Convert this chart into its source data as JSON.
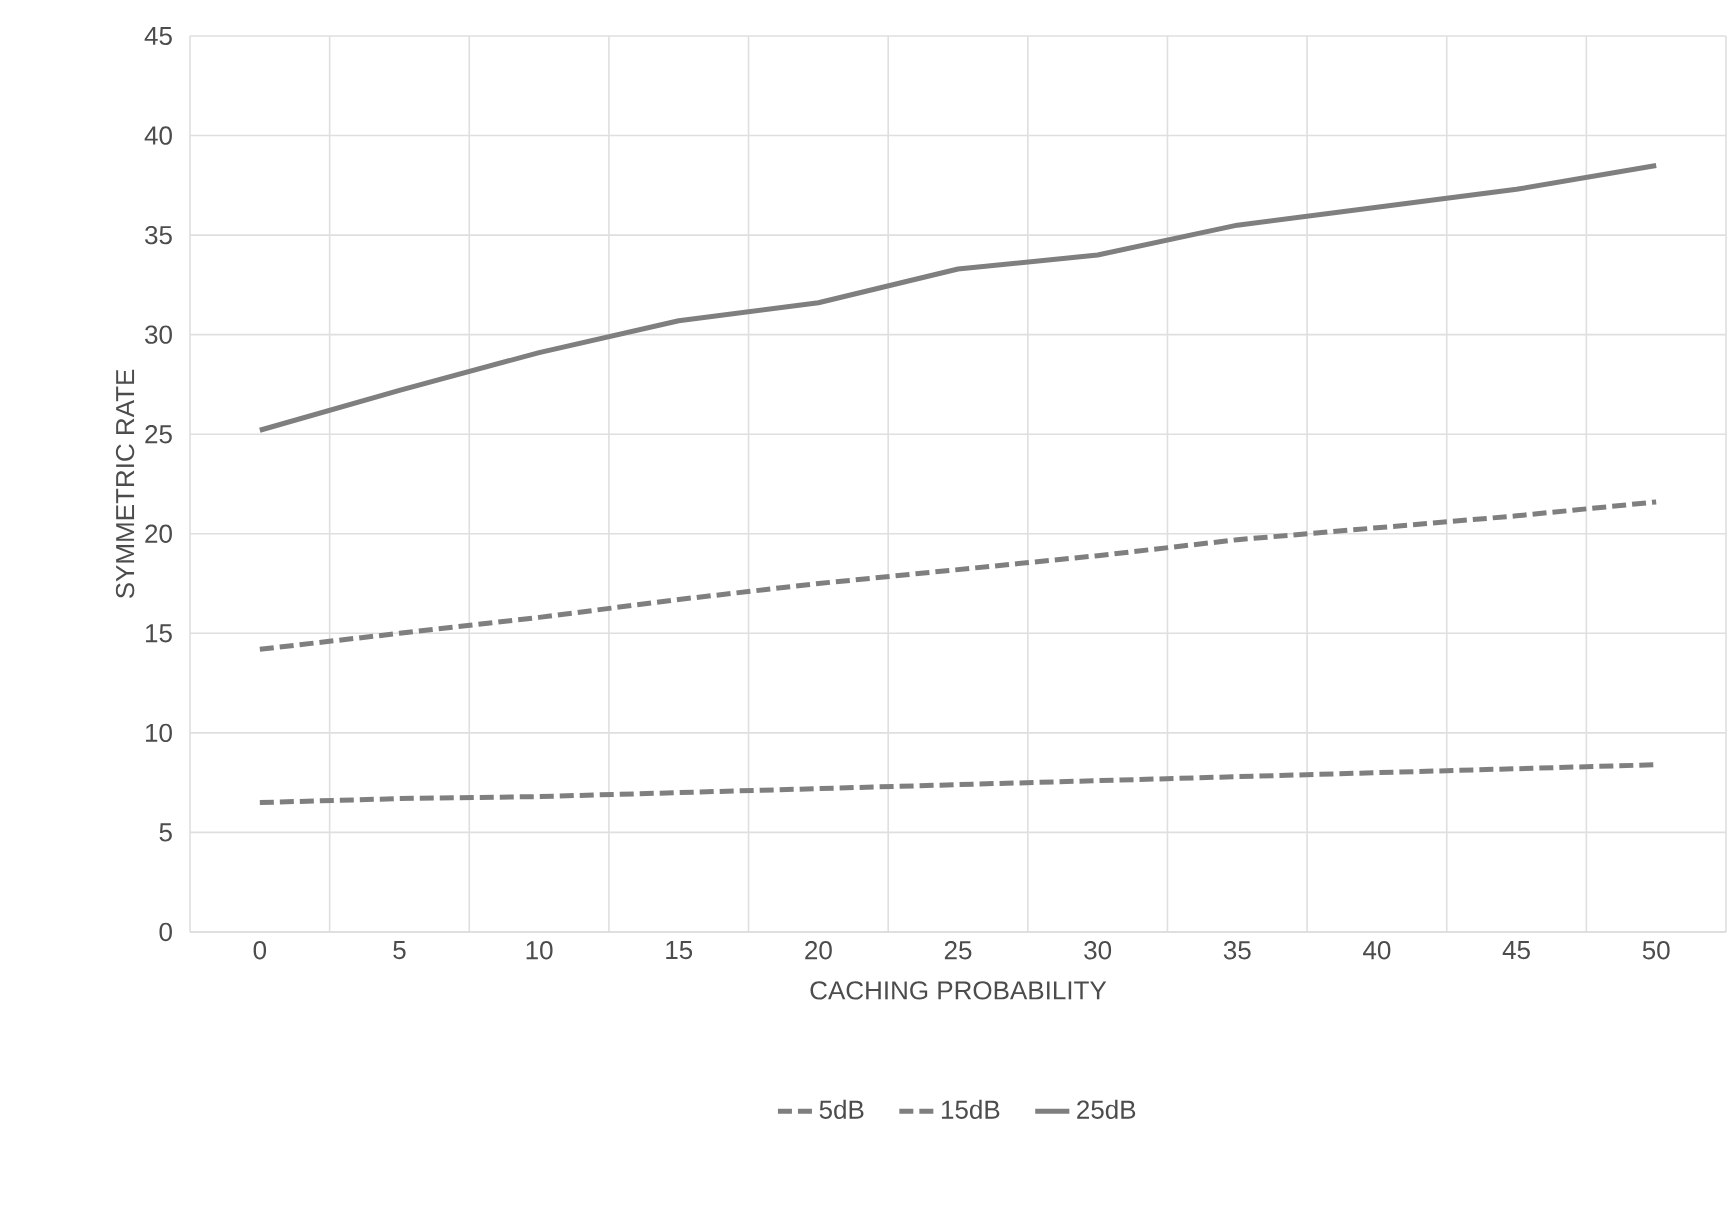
{
  "chart_data": {
    "type": "line",
    "xlabel": "CACHING PROBABILITY",
    "ylabel": "SYMMETRIC RATE",
    "categories": [
      "0",
      "5",
      "10",
      "15",
      "20",
      "25",
      "30",
      "35",
      "40",
      "45",
      "50"
    ],
    "series": [
      {
        "name": "5dB",
        "color": "#7f7f7f",
        "line_style": "dashed",
        "values": [
          6.5,
          6.7,
          6.8,
          7.0,
          7.2,
          7.4,
          7.6,
          7.8,
          8.0,
          8.2,
          8.4
        ]
      },
      {
        "name": "15dB",
        "color": "#7f7f7f",
        "line_style": "dashed",
        "values": [
          14.2,
          15.0,
          15.8,
          16.7,
          17.5,
          18.2,
          18.9,
          19.7,
          20.3,
          20.9,
          21.6
        ]
      },
      {
        "name": "25dB",
        "color": "#7f7f7f",
        "line_style": "solid",
        "values": [
          25.2,
          27.2,
          29.1,
          30.7,
          31.6,
          33.3,
          34.0,
          35.5,
          36.4,
          37.3,
          38.5
        ]
      }
    ],
    "ylim": [
      0,
      45
    ],
    "yticks": [
      0,
      5,
      10,
      15,
      20,
      25,
      30,
      35,
      40,
      45
    ],
    "grid": true,
    "legend": "bottom",
    "marker": "none"
  }
}
